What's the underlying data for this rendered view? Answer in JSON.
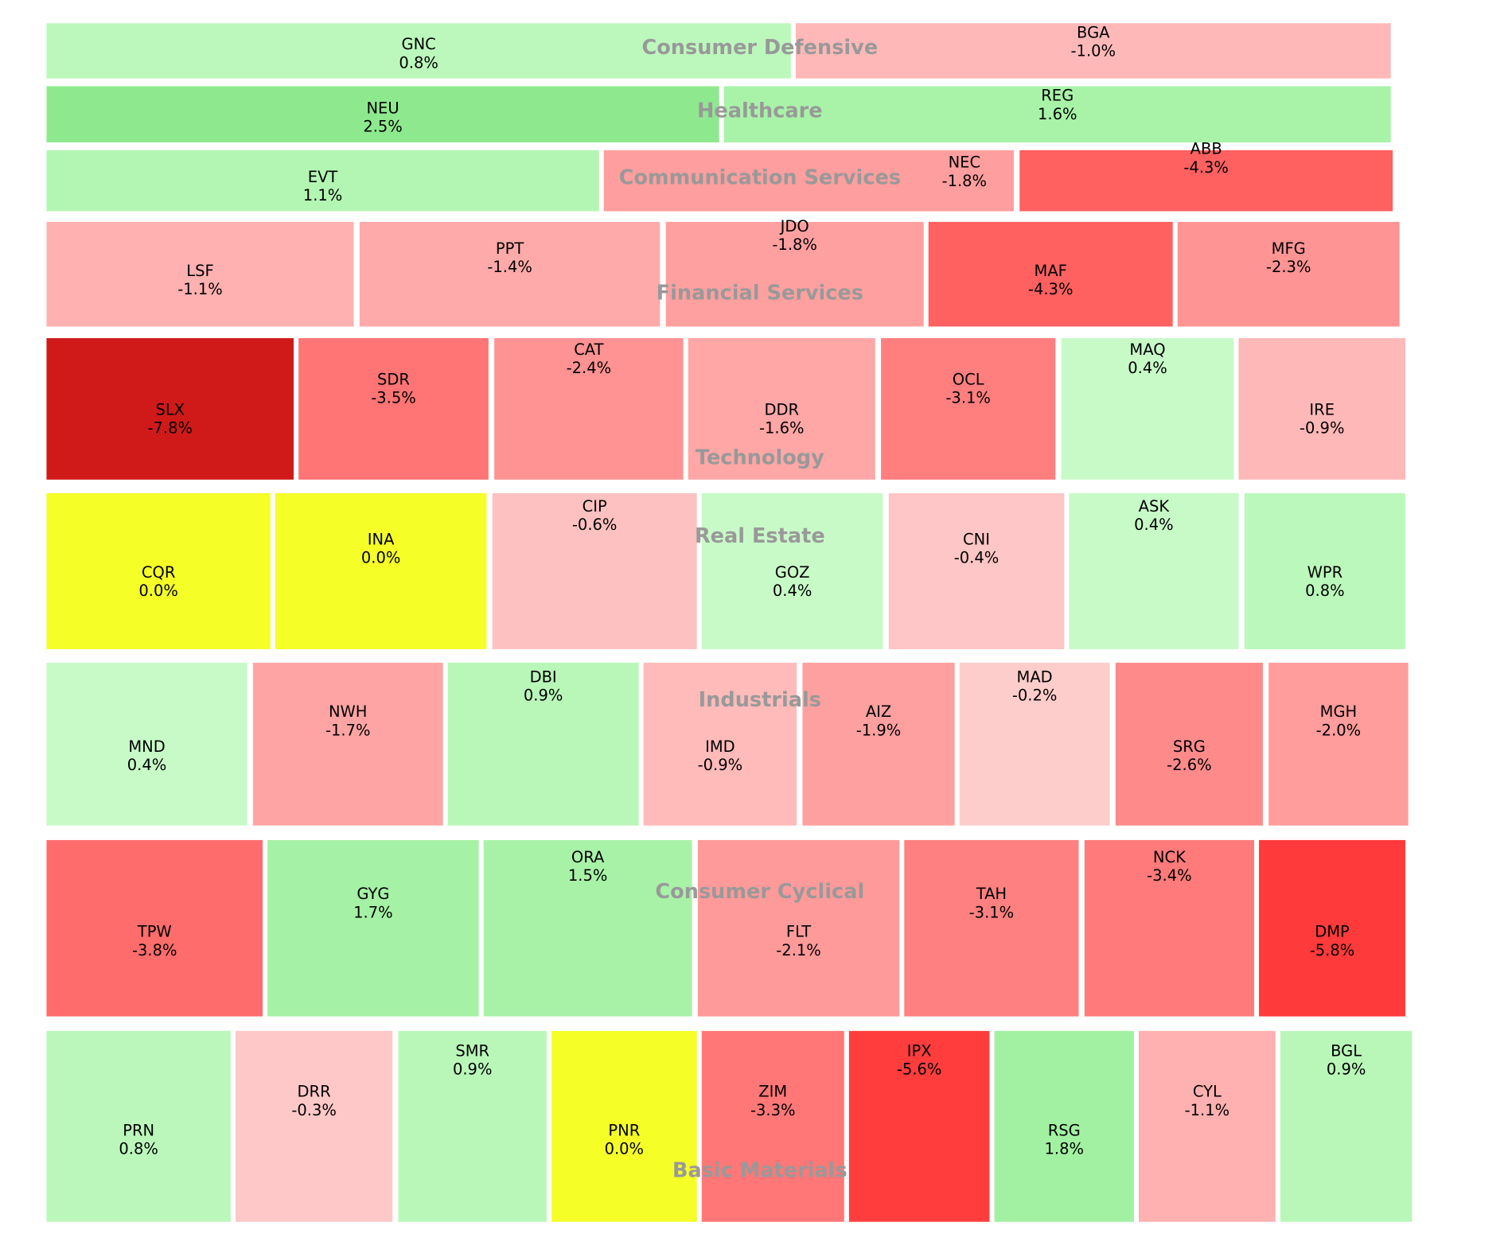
{
  "chart_data": {
    "type": "treemap",
    "title": "",
    "sectors": [
      {
        "name": "Consumer Defensive",
        "stocks": [
          {
            "ticker": "GNC",
            "change": "0.8%",
            "color": "#bcf8bc"
          },
          {
            "ticker": "BGA",
            "change": "-1.0%",
            "color": "#ffb8b8"
          }
        ]
      },
      {
        "name": "Healthcare",
        "stocks": [
          {
            "ticker": "NEU",
            "change": "2.5%",
            "color": "#8ee98e"
          },
          {
            "ticker": "REG",
            "change": "1.6%",
            "color": "#a8f3a8"
          }
        ]
      },
      {
        "name": "Communication Services",
        "stocks": [
          {
            "ticker": "EVT",
            "change": "1.1%",
            "color": "#b3f6b3"
          },
          {
            "ticker": "NEC",
            "change": "-1.8%",
            "color": "#ff9e9e"
          },
          {
            "ticker": "ABB",
            "change": "-4.3%",
            "color": "#ff6060"
          }
        ]
      },
      {
        "name": "Financial Services",
        "stocks": [
          {
            "ticker": "LSF",
            "change": "-1.1%",
            "color": "#ffb0b0"
          },
          {
            "ticker": "PPT",
            "change": "-1.4%",
            "color": "#ffaaaa"
          },
          {
            "ticker": "JDO",
            "change": "-1.8%",
            "color": "#ffa0a0"
          },
          {
            "ticker": "MAF",
            "change": "-4.3%",
            "color": "#ff6060"
          },
          {
            "ticker": "MFG",
            "change": "-2.3%",
            "color": "#ff9494"
          }
        ]
      },
      {
        "name": "Technology",
        "stocks": [
          {
            "ticker": "SLX",
            "change": "-7.8%",
            "color": "#d01a1a"
          },
          {
            "ticker": "SDR",
            "change": "-3.5%",
            "color": "#ff7474"
          },
          {
            "ticker": "CAT",
            "change": "-2.4%",
            "color": "#ff9292"
          },
          {
            "ticker": "DDR",
            "change": "-1.6%",
            "color": "#ffa6a6"
          },
          {
            "ticker": "OCL",
            "change": "-3.1%",
            "color": "#ff7f7f"
          },
          {
            "ticker": "MAQ",
            "change": "0.4%",
            "color": "#c8fac8"
          },
          {
            "ticker": "IRE",
            "change": "-0.9%",
            "color": "#ffb8b8"
          }
        ]
      },
      {
        "name": "Real Estate",
        "stocks": [
          {
            "ticker": "CQR",
            "change": "0.0%",
            "color": "#f5ff27"
          },
          {
            "ticker": "INA",
            "change": "0.0%",
            "color": "#f5ff27"
          },
          {
            "ticker": "CIP",
            "change": "-0.6%",
            "color": "#fdc1c1"
          },
          {
            "ticker": "GOZ",
            "change": "0.4%",
            "color": "#c8fac8"
          },
          {
            "ticker": "CNI",
            "change": "-0.4%",
            "color": "#fec6c6"
          },
          {
            "ticker": "ASK",
            "change": "0.4%",
            "color": "#c8fac8"
          },
          {
            "ticker": "WPR",
            "change": "0.8%",
            "color": "#bbf8bb"
          }
        ]
      },
      {
        "name": "Industrials",
        "stocks": [
          {
            "ticker": "MND",
            "change": "0.4%",
            "color": "#c8fac8"
          },
          {
            "ticker": "NWH",
            "change": "-1.7%",
            "color": "#ffa4a4"
          },
          {
            "ticker": "DBI",
            "change": "0.9%",
            "color": "#b9f7b9"
          },
          {
            "ticker": "IMD",
            "change": "-0.9%",
            "color": "#ffbaba"
          },
          {
            "ticker": "AIZ",
            "change": "-1.9%",
            "color": "#ffa0a0"
          },
          {
            "ticker": "MAD",
            "change": "-0.2%",
            "color": "#fdcdcb"
          },
          {
            "ticker": "SRG",
            "change": "-2.6%",
            "color": "#ff8a8a"
          },
          {
            "ticker": "MGH",
            "change": "-2.0%",
            "color": "#ff9c9c"
          }
        ]
      },
      {
        "name": "Consumer Cyclical",
        "stocks": [
          {
            "ticker": "TPW",
            "change": "-3.8%",
            "color": "#ff6c6c"
          },
          {
            "ticker": "GYG",
            "change": "1.7%",
            "color": "#a5f1a5"
          },
          {
            "ticker": "ORA",
            "change": "1.5%",
            "color": "#a8f2a8"
          },
          {
            "ticker": "FLT",
            "change": "-2.1%",
            "color": "#ff9a9a"
          },
          {
            "ticker": "TAH",
            "change": "-3.1%",
            "color": "#ff8080"
          },
          {
            "ticker": "NCK",
            "change": "-3.4%",
            "color": "#ff7a7a"
          },
          {
            "ticker": "DMP",
            "change": "-5.8%",
            "color": "#ff3a3a"
          }
        ]
      },
      {
        "name": "Basic Materials",
        "stocks": [
          {
            "ticker": "PRN",
            "change": "0.8%",
            "color": "#bbf7bb"
          },
          {
            "ticker": "DRR",
            "change": "-0.3%",
            "color": "#fec8c8"
          },
          {
            "ticker": "SMR",
            "change": "0.9%",
            "color": "#b9f7b9"
          },
          {
            "ticker": "PNR",
            "change": "0.0%",
            "color": "#f5ff27"
          },
          {
            "ticker": "ZIM",
            "change": "-3.3%",
            "color": "#ff7777"
          },
          {
            "ticker": "IPX",
            "change": "-5.6%",
            "color": "#ff3d3d"
          },
          {
            "ticker": "RSG",
            "change": "1.8%",
            "color": "#a2f1a2"
          },
          {
            "ticker": "CYL",
            "change": "-1.1%",
            "color": "#ffb0b0"
          },
          {
            "ticker": "BGL",
            "change": "0.9%",
            "color": "#b9f7b9"
          }
        ]
      }
    ]
  }
}
